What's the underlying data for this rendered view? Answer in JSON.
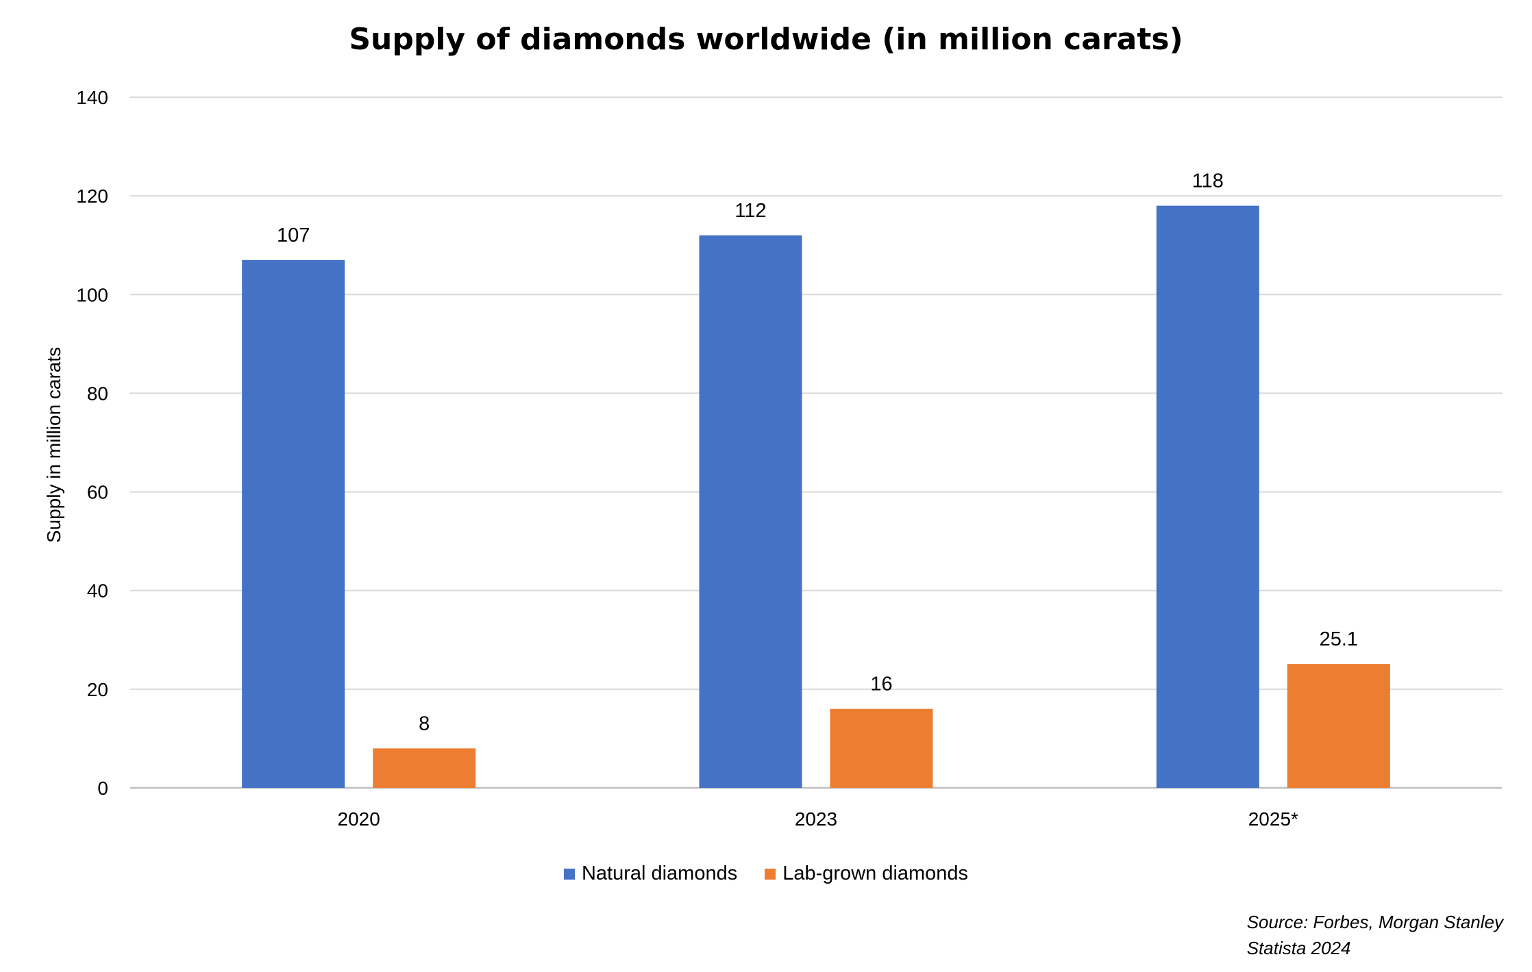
{
  "chart_data": {
    "type": "bar",
    "title": "Supply of diamonds worldwide (in million carats)",
    "xlabel": "",
    "ylabel": "Supply in million carats",
    "categories": [
      "2020",
      "2023",
      "2025*"
    ],
    "series": [
      {
        "name": "Natural diamonds",
        "values": [
          107,
          112,
          118
        ],
        "labels": [
          "107",
          "112",
          "118"
        ],
        "color": "#4472C4"
      },
      {
        "name": "Lab-grown diamonds",
        "values": [
          8,
          16,
          25.1
        ],
        "labels": [
          "8",
          "16",
          "25.1"
        ],
        "color": "#ED7D31"
      }
    ],
    "ylim": [
      0,
      140
    ],
    "yticks": [
      0,
      20,
      40,
      60,
      80,
      100,
      120,
      140
    ],
    "grid": true,
    "legend_position": "bottom"
  },
  "source": {
    "line1": "Source: Forbes, Morgan Stanley",
    "line2": "Statista 2024"
  },
  "colors": {
    "gridline": "#D9D9D9",
    "axis": "#BFBFBF"
  }
}
